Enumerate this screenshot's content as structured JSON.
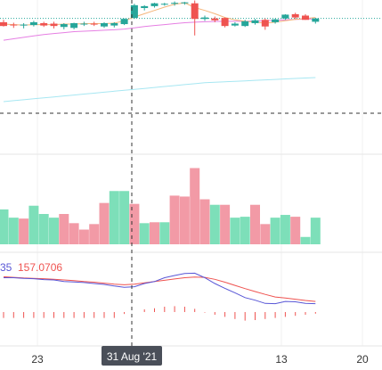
{
  "chart_data": {
    "type": "candlestick",
    "x_axis": {
      "tick_labels": [
        "23",
        "13",
        "20"
      ],
      "crosshair_label": "31 Aug '21"
    },
    "price_panel": {
      "candles": [
        {
          "o": 100.8,
          "h": 101.3,
          "l": 99.9,
          "c": 100.0
        },
        {
          "o": 100.3,
          "h": 100.7,
          "l": 99.6,
          "c": 100.2
        },
        {
          "o": 100.1,
          "h": 100.6,
          "l": 99.5,
          "c": 100.3
        },
        {
          "o": 100.2,
          "h": 101.1,
          "l": 99.9,
          "c": 100.8
        },
        {
          "o": 100.6,
          "h": 100.9,
          "l": 99.8,
          "c": 100.1
        },
        {
          "o": 100.5,
          "h": 100.9,
          "l": 99.5,
          "c": 100.0
        },
        {
          "o": 99.8,
          "h": 100.6,
          "l": 99.3,
          "c": 100.4
        },
        {
          "o": 99.6,
          "h": 100.7,
          "l": 99.3,
          "c": 100.6
        },
        {
          "o": 100.4,
          "h": 100.9,
          "l": 100.0,
          "c": 100.5
        },
        {
          "o": 100.5,
          "h": 100.9,
          "l": 100.0,
          "c": 100.3
        },
        {
          "o": 99.9,
          "h": 100.8,
          "l": 99.6,
          "c": 100.6
        },
        {
          "o": 100.1,
          "h": 100.8,
          "l": 99.7,
          "c": 100.6
        },
        {
          "o": 100.4,
          "h": 101.6,
          "l": 100.2,
          "c": 101.5
        },
        {
          "o": 101.7,
          "h": 104.7,
          "l": 101.5,
          "c": 104.4
        },
        {
          "o": 103.8,
          "h": 104.4,
          "l": 103.3,
          "c": 104.2
        },
        {
          "o": 104.2,
          "h": 104.9,
          "l": 103.9,
          "c": 104.8
        },
        {
          "o": 104.6,
          "h": 104.9,
          "l": 104.3,
          "c": 104.7
        },
        {
          "o": 104.7,
          "h": 105.2,
          "l": 104.3,
          "c": 104.9
        },
        {
          "o": 104.8,
          "h": 105.1,
          "l": 104.5,
          "c": 105.0
        },
        {
          "o": 104.8,
          "h": 105.4,
          "l": 98.0,
          "c": 101.5
        },
        {
          "o": 101.5,
          "h": 102.2,
          "l": 101.1,
          "c": 101.8
        },
        {
          "o": 101.6,
          "h": 102.0,
          "l": 100.8,
          "c": 101.2
        },
        {
          "o": 101.7,
          "h": 101.8,
          "l": 99.7,
          "c": 100.0
        },
        {
          "o": 100.1,
          "h": 100.8,
          "l": 99.9,
          "c": 100.5
        },
        {
          "o": 100.0,
          "h": 101.3,
          "l": 99.8,
          "c": 101.0
        },
        {
          "o": 100.6,
          "h": 101.5,
          "l": 100.3,
          "c": 101.2
        },
        {
          "o": 101.3,
          "h": 101.6,
          "l": 99.2,
          "c": 99.9
        },
        {
          "o": 100.8,
          "h": 101.6,
          "l": 100.5,
          "c": 101.4
        },
        {
          "o": 101.6,
          "h": 102.5,
          "l": 101.3,
          "c": 102.4
        },
        {
          "o": 102.5,
          "h": 102.8,
          "l": 101.5,
          "c": 101.8
        },
        {
          "o": 102.2,
          "h": 102.5,
          "l": 101.3,
          "c": 101.3
        },
        {
          "o": 100.9,
          "h": 101.7,
          "l": 100.5,
          "c": 101.6
        }
      ],
      "ma_orange": [
        100.4,
        100.3,
        100.2,
        100.3,
        100.3,
        100.3,
        100.4,
        100.4,
        100.5,
        100.5,
        100.5,
        100.6,
        101.1,
        101.9,
        102.6,
        103.3,
        104.0,
        104.6,
        104.9,
        103.9,
        103.3,
        102.6,
        101.8,
        101.3,
        101.0,
        100.8,
        100.6,
        100.8,
        101.1,
        101.4,
        101.6,
        101.8
      ],
      "ma_violet": [
        97.0,
        97.3,
        97.6,
        97.9,
        98.2,
        98.4,
        98.6,
        98.8,
        98.9,
        99.0,
        99.1,
        99.2,
        99.35,
        99.6,
        99.9,
        100.1,
        100.3,
        100.5,
        100.7,
        100.8,
        100.9,
        100.95,
        101.0,
        101.0,
        101.0,
        101.05,
        101.1,
        101.2,
        101.3,
        101.4,
        101.45,
        101.5
      ],
      "ma_cyan": [
        84.0,
        84.2,
        84.4,
        84.6,
        84.8,
        85.0,
        85.2,
        85.4,
        85.6,
        85.8,
        86.0,
        86.2,
        86.4,
        86.6,
        86.8,
        87.0,
        87.2,
        87.4,
        87.6,
        87.8,
        88.0,
        88.1,
        88.2,
        88.3,
        88.4,
        88.5,
        88.6,
        88.7,
        88.8,
        88.9,
        89.0,
        89.1
      ],
      "reference_line": 101.6
    },
    "volume_panel": {
      "values": [
        3.8,
        2.9,
        2.8,
        4.2,
        3.3,
        2.9,
        3.3,
        2.3,
        1.6,
        2.2,
        4.5,
        5.8,
        5.8,
        4.4,
        2.3,
        2.4,
        2.4,
        5.3,
        5.2,
        8.3,
        4.9,
        4.3,
        4.3,
        2.9,
        3.0,
        4.3,
        2.2,
        2.9,
        3.2,
        3.0,
        0.8,
        2.9
      ],
      "up": [
        true,
        true,
        false,
        true,
        true,
        true,
        false,
        false,
        false,
        false,
        false,
        true,
        true,
        false,
        true,
        false,
        true,
        false,
        false,
        false,
        false,
        true,
        false,
        true,
        true,
        false,
        false,
        true,
        true,
        false,
        true,
        true
      ]
    },
    "macd_panel": {
      "legend_value_1": "35",
      "legend_value_2": "157.0706",
      "macd_line": [
        3.2,
        3.2,
        3.0,
        2.9,
        2.6,
        2.5,
        2.0,
        1.9,
        1.7,
        1.4,
        1.1,
        0.6,
        0.2,
        0.4,
        1.4,
        2.0,
        3.2,
        3.9,
        4.5,
        4.6,
        3.2,
        1.4,
        -0.1,
        -1.5,
        -3.0,
        -3.8,
        -4.8,
        -4.9,
        -4.2,
        -4.3,
        -4.8,
        -4.9
      ],
      "signal_line": [
        3.5,
        3.3,
        3.1,
        3.0,
        2.9,
        2.7,
        2.5,
        2.3,
        2.0,
        1.8,
        1.5,
        1.2,
        1.0,
        1.2,
        1.6,
        2.0,
        2.4,
        2.8,
        3.2,
        3.4,
        3.3,
        2.7,
        1.8,
        0.8,
        -0.2,
        -1.1,
        -2.0,
        -2.8,
        -3.1,
        -3.5,
        -3.9,
        -4.2
      ],
      "histogram": [
        -5.5,
        -5.5,
        -5.5,
        -5.5,
        -5.5,
        -5.5,
        -5.5,
        -5.5,
        -5.5,
        -5.5,
        -5.5,
        -5.5,
        -1.8,
        0,
        2.5,
        3.5,
        5.0,
        5.5,
        5.0,
        3.0,
        -0.5,
        -2.5,
        -4.5,
        -6.5,
        -8.0,
        -7.5,
        -6.5,
        -5.5,
        -4.5,
        -3.5,
        -2.5,
        -1.5
      ]
    },
    "colors": {
      "up": "#7ddfb9",
      "up_candle": "#26a69a",
      "down": "#f29aa6",
      "down_candle": "#ef5350",
      "ma_orange": "#f5b57a",
      "ma_violet": "#e67fe3",
      "ma_cyan": "#a7e7f2",
      "macd_line": "#5856d6",
      "signal_line": "#ef5350",
      "reference_line": "#26a69a",
      "crosshair": "#333333",
      "axis_bg": "#4a4f59"
    }
  }
}
